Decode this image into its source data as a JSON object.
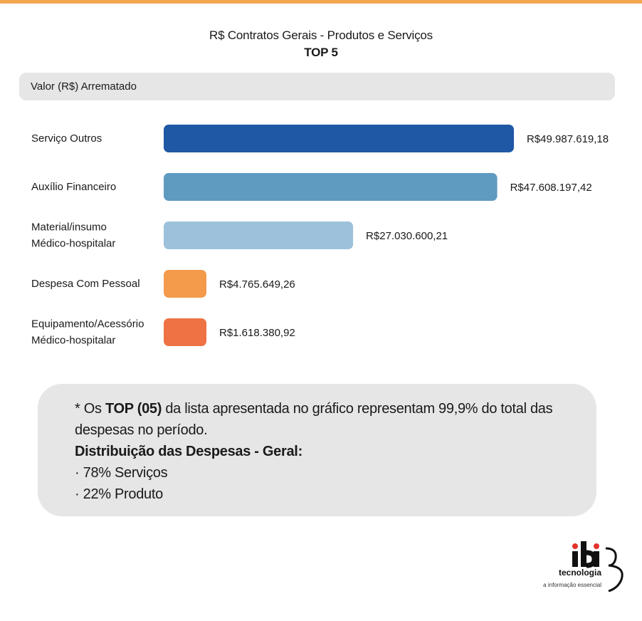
{
  "header": {
    "title": "R$ Contratos Gerais - Produtos e Serviços",
    "subtitle": "TOP 5"
  },
  "metric_label": "Valor (R$) Arrematado",
  "chart_data": {
    "type": "bar",
    "orientation": "horizontal",
    "title": "R$ Contratos Gerais - Produtos e Serviços",
    "subtitle": "TOP 5",
    "xlabel": "Valor (R$) Arrematado",
    "categories": [
      "Serviço Outros",
      "Auxílio Financeiro",
      "Material/insumo Médico-hospitalar",
      "Despesa Com Pessoal",
      "Equipamento/Acessório Médico-hospitalar"
    ],
    "category_lines": [
      [
        "Serviço Outros"
      ],
      [
        "Auxílio Financeiro"
      ],
      [
        "Material/insumo",
        "Médico-hospitalar"
      ],
      [
        "Despesa Com Pessoal"
      ],
      [
        "Equipamento/Acessório",
        "Médico-hospitalar"
      ]
    ],
    "values": [
      49987619.18,
      47608197.42,
      27030600.21,
      4765649.26,
      1618380.92
    ],
    "value_labels": [
      "R$49.987.619,18",
      "R$47.608.197,42",
      "R$27.030.600,21",
      "R$4.765.649,26",
      "R$1.618.380,92"
    ],
    "colors": [
      "#1f58a4",
      "#5f9ac1",
      "#9dc1da",
      "#f39a4b",
      "#ee7243"
    ],
    "legend": "none",
    "grid": false
  },
  "note": {
    "line1_prefix": "* Os ",
    "line1_bold": "TOP (05)",
    "line1_suffix": " da lista apresentada no gráfico representam 99,9% do total das despesas no período.",
    "heading": "Distribuição das Despesas - Geral:",
    "items": [
      "· 78% Serviços",
      "· 22% Produto"
    ]
  },
  "logo": {
    "brand": "ibi",
    "name": "tecnologia",
    "tagline": "a informação essencial",
    "accent_color": "#e4322b"
  }
}
